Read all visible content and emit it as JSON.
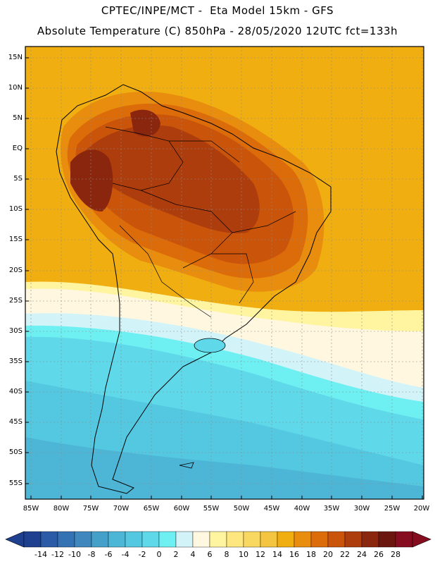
{
  "header": {
    "line1": "CPTEC/INPE/MCT -  Eta Model 15km - GFS",
    "line2": "Absolute Temperature (C) 850hPa - 28/05/2020 12UTC fct=133h"
  },
  "axes": {
    "lat_labels": [
      "15N",
      "10N",
      "5N",
      "EQ",
      "5S",
      "10S",
      "15S",
      "20S",
      "25S",
      "30S",
      "35S",
      "40S",
      "45S",
      "50S",
      "55S"
    ],
    "lon_labels": [
      "85W",
      "80W",
      "75W",
      "70W",
      "65W",
      "60W",
      "55W",
      "50W",
      "45W",
      "40W",
      "35W",
      "30W",
      "25W",
      "20W"
    ]
  },
  "colorbar": {
    "labels": [
      "-14",
      "-12",
      "-10",
      "-8",
      "-6",
      "-4",
      "-2",
      "0",
      "2",
      "4",
      "6",
      "8",
      "10",
      "12",
      "14",
      "16",
      "18",
      "20",
      "22",
      "24",
      "26",
      "28"
    ],
    "colors": [
      "#1f3f8f",
      "#2b5aa6",
      "#3572b4",
      "#3f87bd",
      "#45a0c9",
      "#4db6d6",
      "#54c8e0",
      "#5fd8ea",
      "#6ef0f2",
      "#d2f3f8",
      "#fff7e0",
      "#fff5a0",
      "#fde77e",
      "#f8d860",
      "#f3c540",
      "#f0ae10",
      "#e88d0e",
      "#dc6b0a",
      "#c9540a",
      "#ad3d0c",
      "#8b260e",
      "#6b170f",
      "#860d1f"
    ],
    "low_end_color": "#1f3f8f",
    "high_end_color": "#860d1f"
  }
}
